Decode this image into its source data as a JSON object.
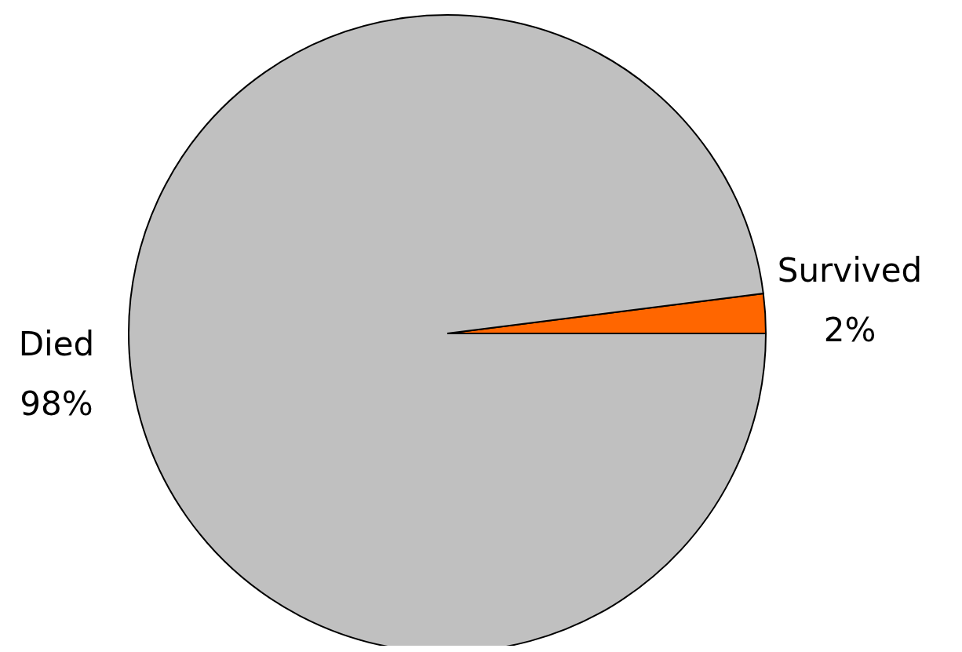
{
  "chart_data": {
    "type": "pie",
    "categories": [
      "Survived",
      "Died"
    ],
    "values": [
      2,
      98
    ],
    "value_labels": [
      "2%",
      "98%"
    ],
    "colors": [
      "#ff6600",
      "#c0c0c0"
    ]
  }
}
